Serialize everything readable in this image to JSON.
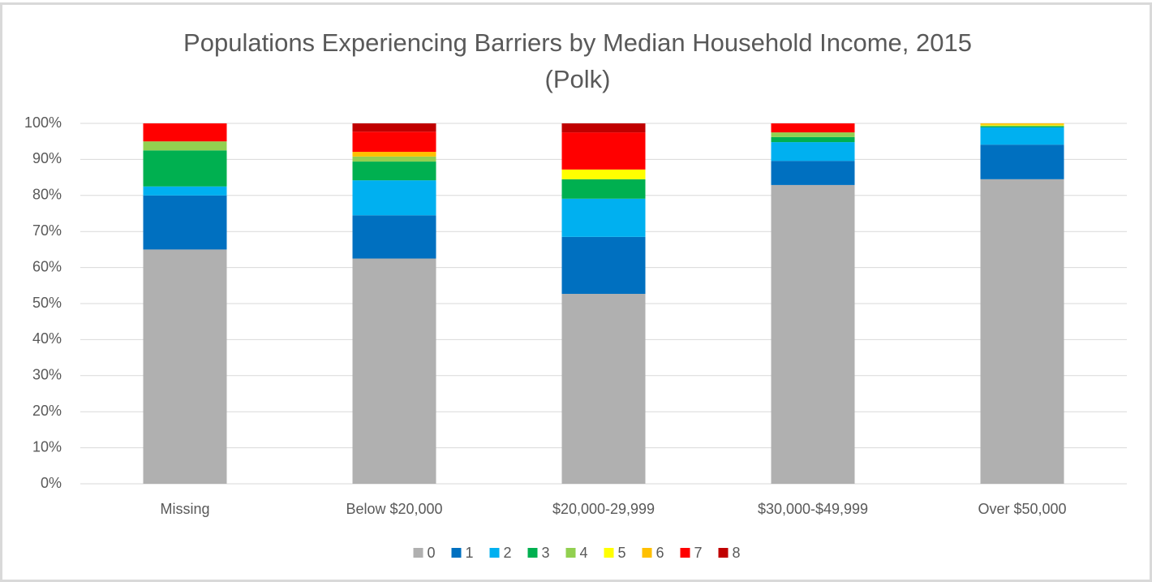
{
  "chart_data": {
    "type": "stacked_bar",
    "title": "Populations Experiencing Barriers by Median Household Income, 2015",
    "subtitle": "(Polk)",
    "categories": [
      "Missing",
      "Below $20,000",
      "$20,000-29,999",
      "$30,000-$49,999",
      "Over $50,000"
    ],
    "series": [
      {
        "name": "0",
        "color": "#b0b0b0",
        "values": [
          65,
          62.5,
          52.7,
          82.9,
          84.5
        ]
      },
      {
        "name": "1",
        "color": "#0070c0",
        "values": [
          15,
          12,
          15.8,
          6.7,
          9.6
        ]
      },
      {
        "name": "2",
        "color": "#00b0f0",
        "values": [
          2.5,
          9.7,
          10.6,
          5.2,
          4.8
        ]
      },
      {
        "name": "3",
        "color": "#00b050",
        "values": [
          10,
          5.2,
          5.4,
          1.4,
          0.3
        ]
      },
      {
        "name": "4",
        "color": "#92d050",
        "values": [
          2.5,
          1.4,
          0,
          1.3,
          0.2
        ]
      },
      {
        "name": "5",
        "color": "#ffff00",
        "values": [
          0,
          0,
          2.7,
          0,
          0.2
        ]
      },
      {
        "name": "6",
        "color": "#ffc000",
        "values": [
          0,
          1.3,
          0,
          0,
          0.4
        ]
      },
      {
        "name": "7",
        "color": "#ff0000",
        "values": [
          5,
          5.6,
          10.3,
          2.5,
          0
        ]
      },
      {
        "name": "8",
        "color": "#c00000",
        "values": [
          0,
          2.3,
          2.5,
          0,
          0
        ]
      }
    ],
    "ylim": [
      0,
      100
    ],
    "yticks": [
      {
        "value": 0,
        "label": "0%"
      },
      {
        "value": 10,
        "label": "10%"
      },
      {
        "value": 20,
        "label": "20%"
      },
      {
        "value": 30,
        "label": "30%"
      },
      {
        "value": 40,
        "label": "40%"
      },
      {
        "value": 50,
        "label": "50%"
      },
      {
        "value": 60,
        "label": "60%"
      },
      {
        "value": 70,
        "label": "70%"
      },
      {
        "value": 80,
        "label": "80%"
      },
      {
        "value": 90,
        "label": "90%"
      },
      {
        "value": 100,
        "label": "100%"
      }
    ],
    "grid": true,
    "legend": "bottom"
  }
}
